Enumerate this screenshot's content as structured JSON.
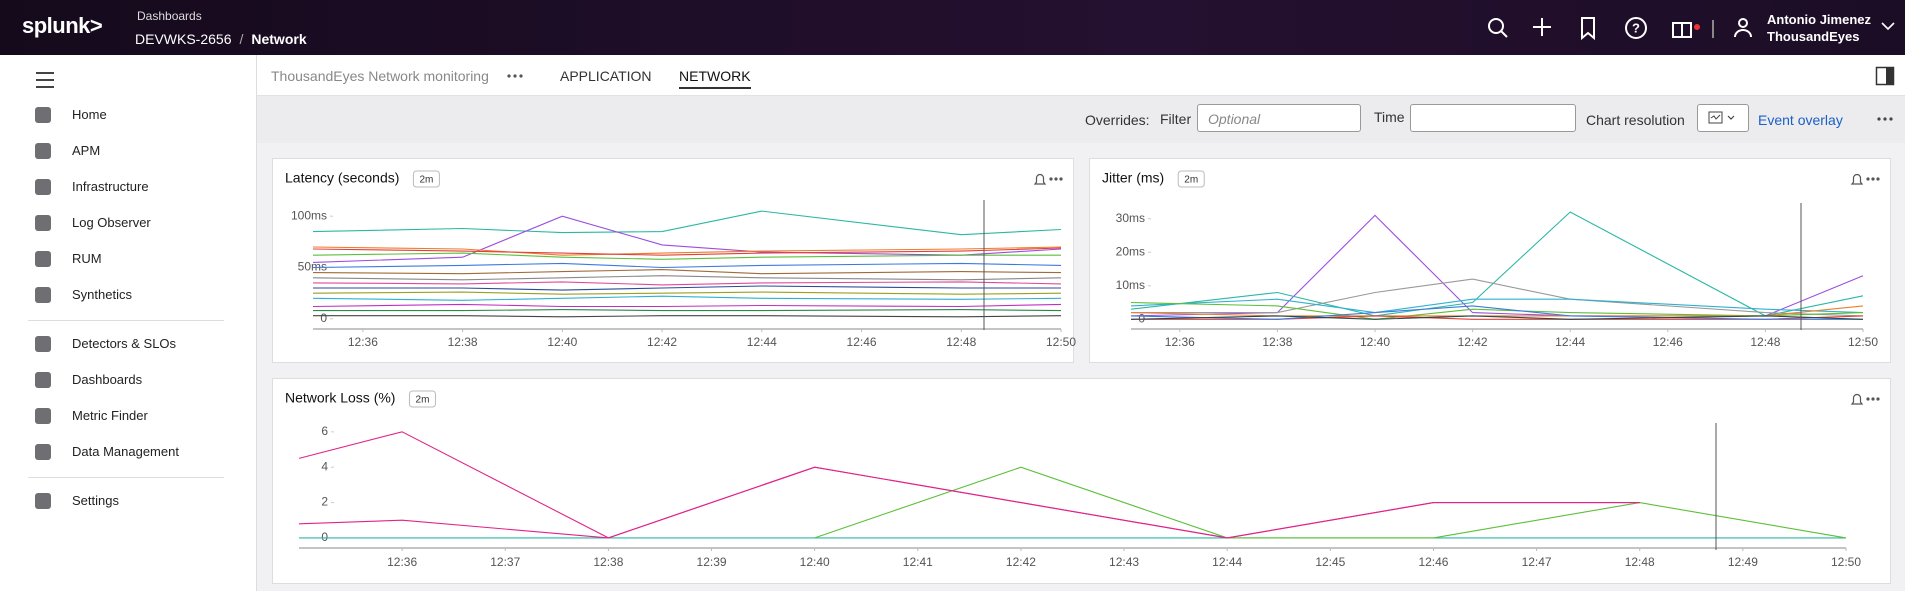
{
  "header": {
    "logo": "splunk>",
    "section": "Dashboards",
    "group": "DEVWKS-2656",
    "separator": "/",
    "dashboard": "Network",
    "user_name": "Antonio Jimenez",
    "org": "ThousandEyes"
  },
  "sidebar": {
    "items": [
      "Home",
      "APM",
      "Infrastructure",
      "Log Observer",
      "RUM",
      "Synthetics",
      "Detectors & SLOs",
      "Dashboards",
      "Metric Finder",
      "Data Management",
      "Settings"
    ]
  },
  "tabs": {
    "group": "ThousandEyes Network monitoring",
    "items": [
      "APPLICATION",
      "NETWORK"
    ]
  },
  "overrides": {
    "label": "Overrides:",
    "filter": "Filter",
    "filter_placeholder": "Optional",
    "time": "Time",
    "chart_resolution": "Chart resolution",
    "event_overlay": "Event overlay"
  },
  "chart_data": [
    {
      "type": "line",
      "title": "Latency (seconds)",
      "resolution": "2m",
      "x": [
        "12:35",
        "12:38",
        "12:40",
        "12:42",
        "12:44",
        "12:48",
        "12:50"
      ],
      "xlim": [
        "12:35",
        "12:50"
      ],
      "xticks": [
        "12:36",
        "12:38",
        "12:40",
        "12:42",
        "12:44",
        "12:46",
        "12:48",
        "12:50"
      ],
      "ylim": [
        -7,
        107
      ],
      "yticks": [
        {
          "value": 100,
          "label": "100ms"
        },
        {
          "value": 50,
          "label": "50ms"
        },
        0
      ],
      "series": [
        {
          "color": "#29b8a3",
          "values": [
            85,
            88,
            84,
            85,
            105,
            82,
            87
          ]
        },
        {
          "color": "#9b4de0",
          "values": [
            55,
            60,
            100,
            72,
            65,
            62,
            68
          ]
        },
        {
          "color": "#f07b2a",
          "values": [
            70,
            68,
            62,
            64,
            66,
            68,
            70
          ]
        },
        {
          "color": "#e0413a",
          "values": [
            68,
            66,
            64,
            62,
            64,
            66,
            69
          ]
        },
        {
          "color": "#5cbf3a",
          "values": [
            62,
            64,
            60,
            58,
            60,
            62,
            62
          ]
        },
        {
          "color": "#3b7be0",
          "values": [
            50,
            52,
            54,
            50,
            52,
            54,
            52
          ]
        },
        {
          "color": "#a06a3a",
          "values": [
            45,
            44,
            46,
            48,
            44,
            46,
            45
          ]
        },
        {
          "color": "#888888",
          "values": [
            40,
            38,
            40,
            42,
            40,
            38,
            40
          ]
        },
        {
          "color": "#e04a9b",
          "values": [
            35,
            34,
            36,
            33,
            35,
            36,
            34
          ]
        },
        {
          "color": "#2a4a9a",
          "values": [
            30,
            30,
            28,
            30,
            32,
            30,
            30
          ]
        },
        {
          "color": "#9aa020",
          "values": [
            25,
            26,
            24,
            25,
            26,
            24,
            25
          ]
        },
        {
          "color": "#30b0d0",
          "values": [
            20,
            18,
            20,
            22,
            20,
            19,
            20
          ]
        },
        {
          "color": "#c030c0",
          "values": [
            12,
            14,
            12,
            12,
            13,
            12,
            14
          ]
        },
        {
          "color": "#2a8a4a",
          "values": [
            8,
            8,
            9,
            8,
            8,
            9,
            8
          ]
        },
        {
          "color": "#444444",
          "values": [
            3,
            3,
            2,
            3,
            3,
            2,
            3
          ]
        }
      ]
    },
    {
      "type": "line",
      "title": "Jitter (ms)",
      "resolution": "2m",
      "x": [
        "12:35",
        "12:38",
        "12:40",
        "12:42",
        "12:44",
        "12:48",
        "12:50"
      ],
      "xlim": [
        "12:35",
        "12:50"
      ],
      "xticks": [
        "12:36",
        "12:38",
        "12:40",
        "12:42",
        "12:44",
        "12:46",
        "12:48",
        "12:50"
      ],
      "ylim": [
        -2,
        33.5
      ],
      "yticks": [
        {
          "value": 30,
          "label": "30ms"
        },
        {
          "value": 20,
          "label": "20ms"
        },
        {
          "value": 10,
          "label": "10ms"
        },
        0
      ],
      "series": [
        {
          "color": "#9b4de0",
          "values": [
            1,
            2,
            31,
            2,
            1,
            1,
            13
          ]
        },
        {
          "color": "#29b8a3",
          "values": [
            3,
            8,
            1,
            5,
            32,
            1,
            7
          ]
        },
        {
          "color": "#999999",
          "values": [
            2,
            2,
            8,
            12,
            6,
            2,
            1
          ]
        },
        {
          "color": "#30b0d0",
          "values": [
            4,
            6,
            2,
            6,
            6,
            3,
            2
          ]
        },
        {
          "color": "#5cbf3a",
          "values": [
            5,
            4,
            0,
            3,
            2,
            1,
            2
          ]
        },
        {
          "color": "#f07b2a",
          "values": [
            2,
            1,
            1,
            1,
            1,
            1,
            4
          ]
        },
        {
          "color": "#e0413a",
          "values": [
            0,
            0,
            1,
            0,
            0,
            0,
            1
          ]
        },
        {
          "color": "#3b7be0",
          "values": [
            1,
            0,
            2,
            4,
            1,
            0,
            0
          ]
        },
        {
          "color": "#2a4a4a",
          "values": [
            0,
            1,
            0,
            1,
            0,
            1,
            0
          ]
        }
      ]
    },
    {
      "type": "line",
      "title": "Network Loss (%)",
      "resolution": "2m",
      "x": [
        "12:35",
        "12:36",
        "12:38",
        "12:40",
        "12:42",
        "12:44",
        "12:46",
        "12:48",
        "12:50"
      ],
      "xlim": [
        "12:35",
        "12:50"
      ],
      "xticks": [
        "12:36",
        "12:37",
        "12:38",
        "12:39",
        "12:40",
        "12:41",
        "12:42",
        "12:43",
        "12:44",
        "12:45",
        "12:46",
        "12:47",
        "12:48",
        "12:49",
        "12:50"
      ],
      "ylim": [
        -0.4,
        6.5
      ],
      "yticks": [
        6,
        4,
        2,
        0
      ],
      "series": [
        {
          "color": "#29b8a3",
          "values": [
            0,
            0,
            0,
            0,
            0,
            0,
            0,
            0,
            0
          ]
        },
        {
          "color": "#5cbf3a",
          "values": [
            null,
            null,
            null,
            0,
            4,
            0,
            0,
            2,
            0
          ]
        },
        {
          "color": "#e0248a",
          "values": [
            0.8,
            1,
            0,
            4,
            2,
            0,
            2,
            2,
            null
          ]
        },
        {
          "color": "#e0248a",
          "values": [
            4.5,
            6,
            0,
            4,
            2,
            0,
            2,
            2,
            null
          ]
        }
      ]
    }
  ]
}
